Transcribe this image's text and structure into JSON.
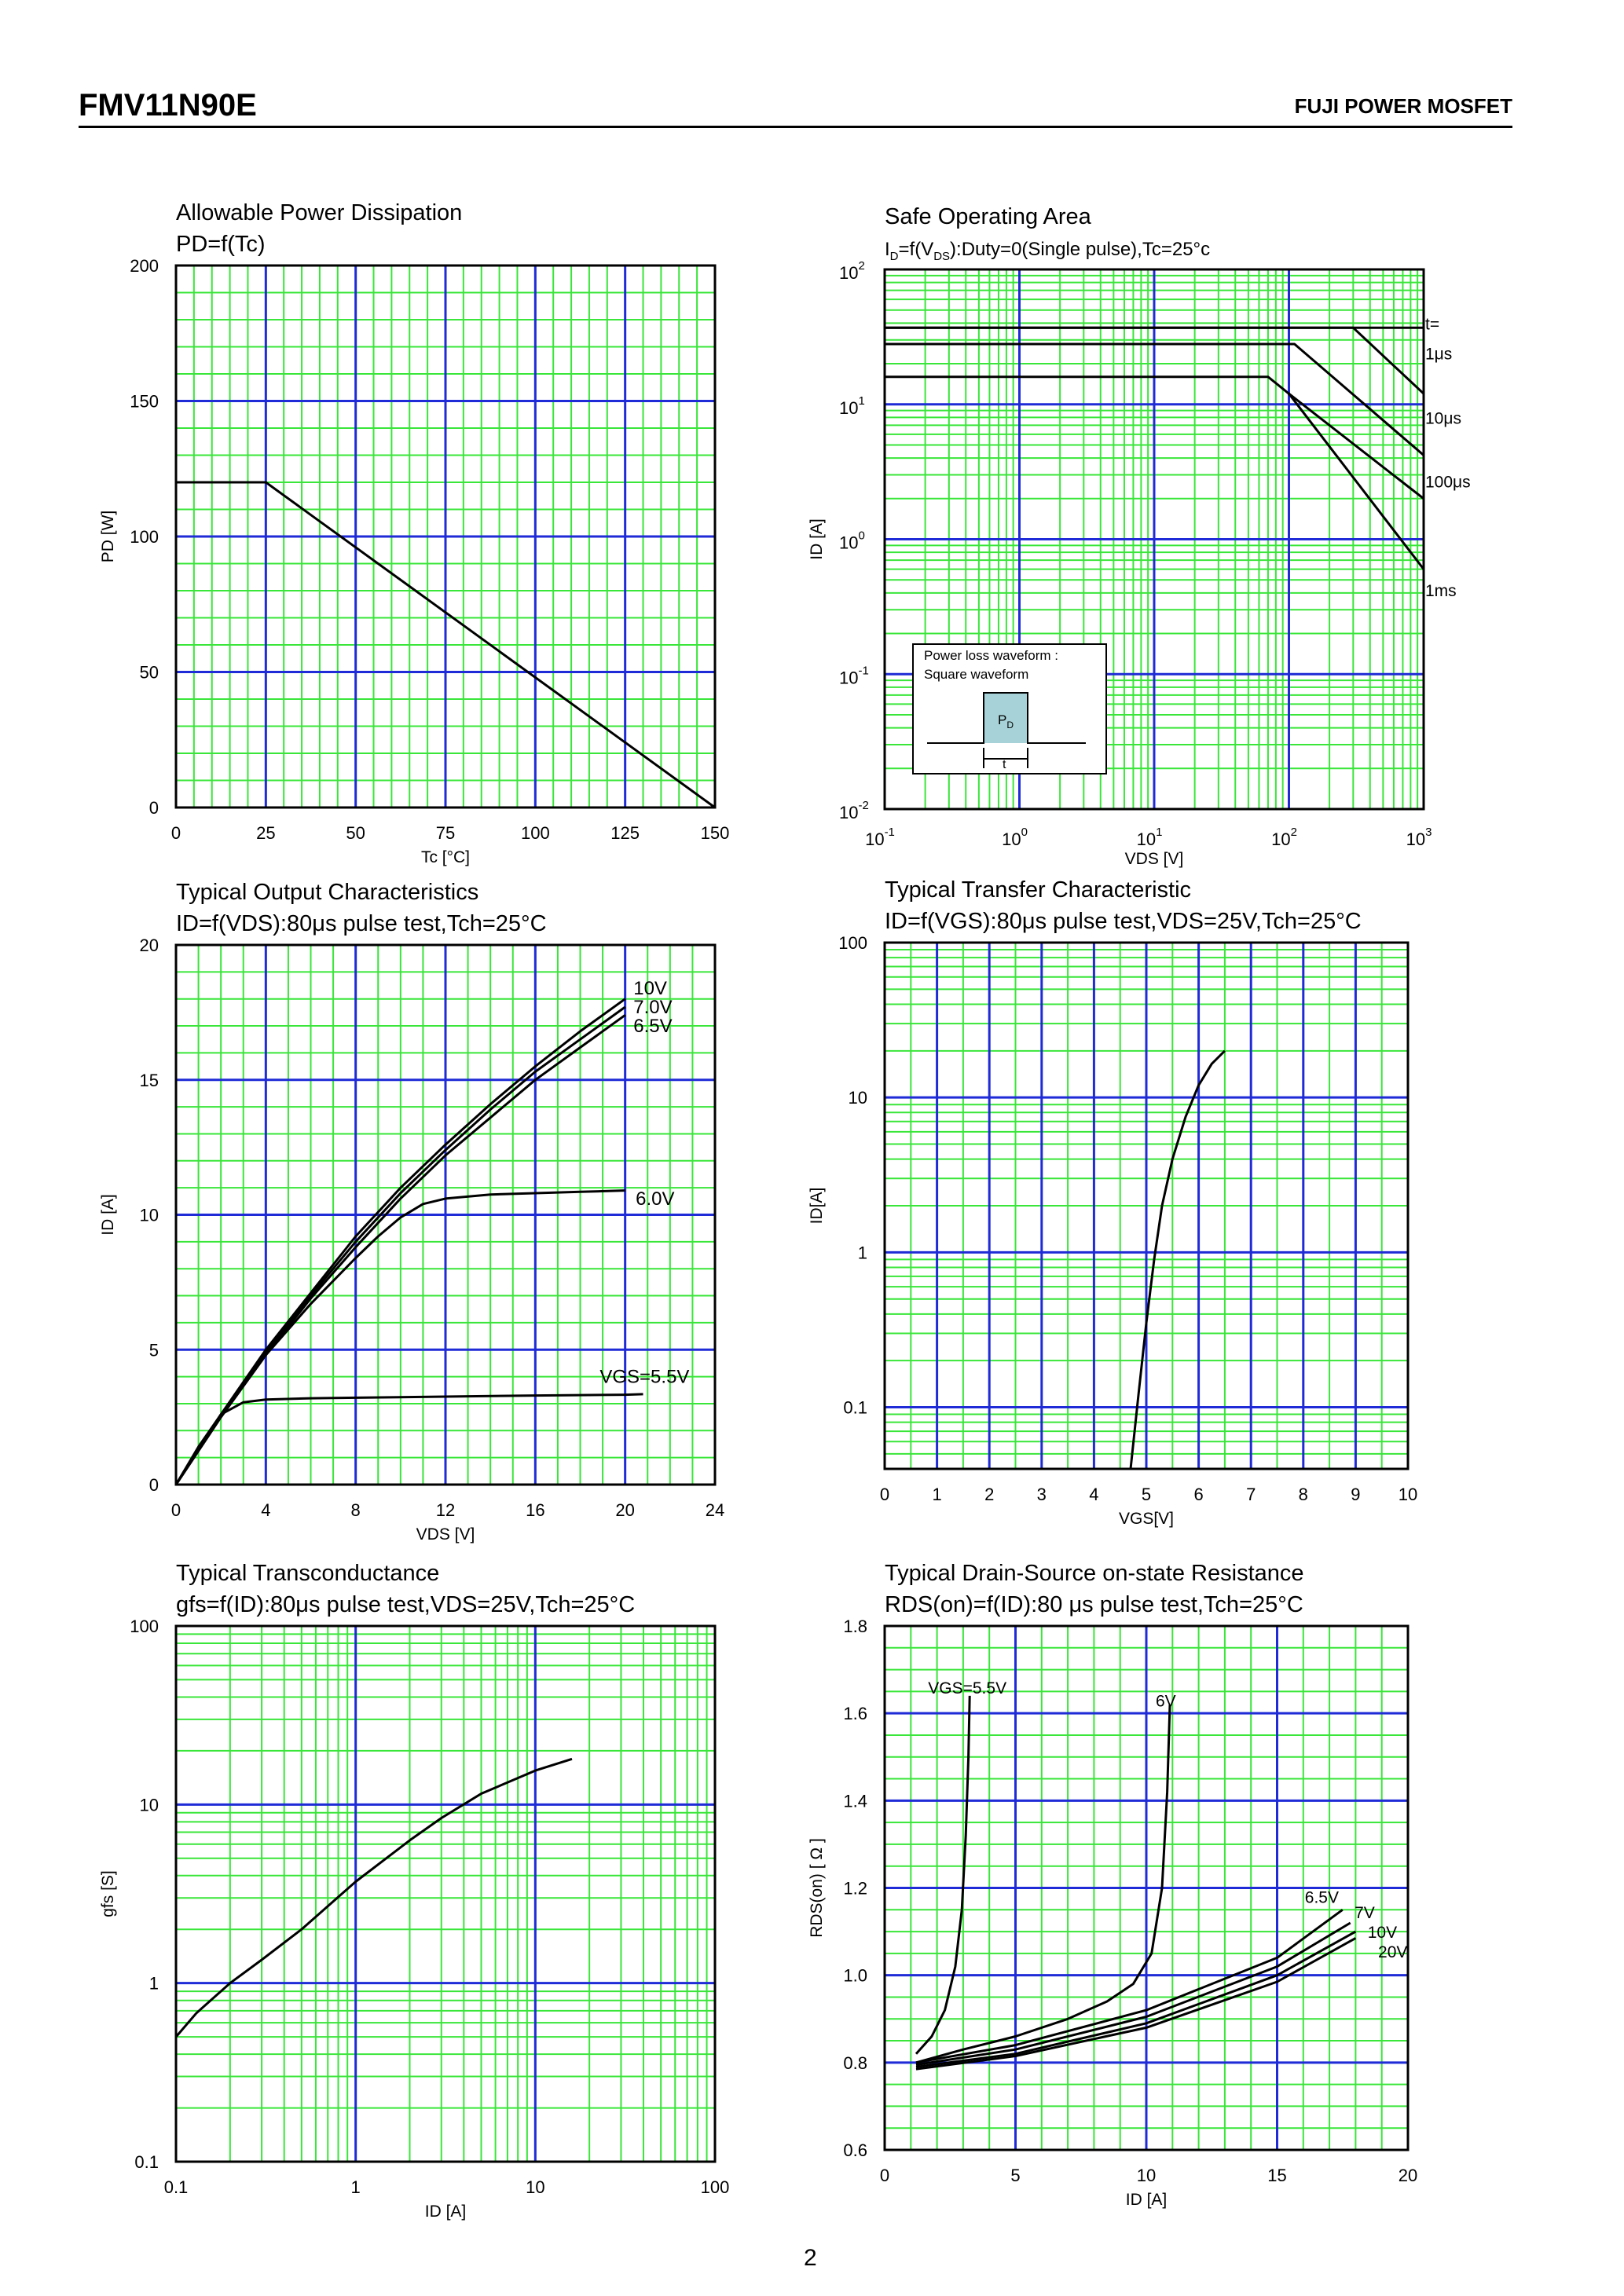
{
  "header": {
    "part_number": "FMV11N90E",
    "brand": "FUJI POWER MOSFET"
  },
  "footer": {
    "page_number": "2"
  },
  "colors": {
    "grid_minor": "#39e639",
    "grid_major": "#1f2bd6",
    "plot_bg": "#ffffff",
    "curve": "#000000"
  },
  "chart_data": [
    {
      "id": "pd",
      "type": "line",
      "title": "Allowable Power Dissipation",
      "subtitle": "PD=f(Tc)",
      "xlabel": "Tc [°C]",
      "ylabel": "PD [W]",
      "xscale": "linear",
      "yscale": "linear",
      "xlim": [
        0,
        150
      ],
      "ylim": [
        0,
        200
      ],
      "xticks": [
        0,
        25,
        50,
        75,
        100,
        125,
        150
      ],
      "yticks": [
        0,
        50,
        100,
        150,
        200
      ],
      "xtick_labels": [
        "0",
        "25",
        "50",
        "75",
        "100",
        "125",
        "150"
      ],
      "ytick_labels": [
        "0",
        "50",
        "100",
        "150",
        "200"
      ],
      "series": [
        {
          "x": [
            0,
            25,
            150
          ],
          "y": [
            120,
            120,
            0
          ]
        }
      ]
    },
    {
      "id": "soa",
      "type": "line",
      "title": "Safe Operating Area",
      "subtitle_parts": [
        "I",
        "D",
        "=f(V",
        "DS",
        "):Duty=0(Single pulse),Tc=25°c"
      ],
      "xlabel": "VDS [V]",
      "ylabel": "ID [A]",
      "xscale": "log",
      "yscale": "log",
      "xlim": [
        0.1,
        1000
      ],
      "ylim": [
        0.01,
        100
      ],
      "xticks": [
        0.1,
        1,
        10,
        100,
        1000
      ],
      "yticks": [
        0.01,
        0.1,
        1,
        10,
        100
      ],
      "xtick_base": [
        "10",
        "10",
        "10",
        "10",
        "10"
      ],
      "xtick_exp": [
        "-1",
        "0",
        "1",
        "2",
        "3"
      ],
      "ytick_base": [
        "10",
        "10",
        "10",
        "10",
        "10"
      ],
      "ytick_exp": [
        "-2",
        "-1",
        "0",
        "1",
        "2"
      ],
      "inset": {
        "line1": "Power loss waveform :",
        "line2": "Square waveform",
        "pd_base": "P",
        "pd_sub": "D",
        "t_label": "t"
      },
      "series": [
        {
          "name": "t=",
          "x": [
            0.1,
            1000
          ],
          "y": [
            37,
            37
          ]
        },
        {
          "name": "1μs",
          "x": [
            0.1,
            300,
            1000
          ],
          "y": [
            37,
            37,
            12
          ]
        },
        {
          "name": "10μs",
          "x": [
            0.1,
            110,
            1000
          ],
          "y": [
            28,
            28,
            4.2
          ]
        },
        {
          "name": "100μs",
          "x": [
            0.1,
            70,
            100,
            1000
          ],
          "y": [
            16,
            16,
            12,
            2.0
          ]
        },
        {
          "name": "1ms",
          "x": [
            100,
            1000
          ],
          "y": [
            12,
            0.6
          ]
        }
      ],
      "annotations": [
        {
          "text": "t=",
          "x": 1000,
          "y": 40
        },
        {
          "text": "1μs",
          "x": 1000,
          "y": 24
        },
        {
          "text": "10μs",
          "x": 1000,
          "y": 8
        },
        {
          "text": "100μs",
          "x": 1000,
          "y": 2.7
        },
        {
          "text": "1ms",
          "x": 1000,
          "y": 0.42
        }
      ]
    },
    {
      "id": "output",
      "type": "line",
      "title": "Typical Output Characteristics",
      "subtitle": "ID=f(VDS):80μs pulse test,Tch=25°C",
      "xlabel": "VDS [V]",
      "ylabel": "ID [A]",
      "xscale": "linear",
      "yscale": "linear",
      "xlim": [
        0,
        24
      ],
      "ylim": [
        0,
        20
      ],
      "xticks": [
        0,
        4,
        8,
        12,
        16,
        20,
        24
      ],
      "yticks": [
        0,
        5,
        10,
        15,
        20
      ],
      "xtick_labels": [
        "0",
        "4",
        "8",
        "12",
        "16",
        "20",
        "24"
      ],
      "ytick_labels": [
        "0",
        "5",
        "10",
        "15",
        "20"
      ],
      "series": [
        {
          "name": "10V",
          "x": [
            0,
            2,
            4,
            6,
            8,
            10,
            12,
            14,
            16,
            18,
            20
          ],
          "y": [
            0,
            2.6,
            5.0,
            7.1,
            9.2,
            11.0,
            12.6,
            14.1,
            15.5,
            16.8,
            18.0
          ]
        },
        {
          "name": "7.0V",
          "x": [
            0,
            2,
            4,
            6,
            8,
            10,
            12,
            14,
            16,
            18,
            20
          ],
          "y": [
            0,
            2.6,
            4.9,
            7.0,
            9.0,
            10.8,
            12.4,
            13.9,
            15.3,
            16.5,
            17.7
          ]
        },
        {
          "name": "6.5V",
          "x": [
            0,
            2,
            4,
            6,
            8,
            10,
            12,
            14,
            16,
            18,
            20
          ],
          "y": [
            0,
            2.5,
            4.8,
            6.9,
            8.8,
            10.6,
            12.2,
            13.6,
            15.0,
            16.2,
            17.4
          ]
        },
        {
          "name": "6.0V",
          "x": [
            0,
            2,
            4,
            6,
            8,
            9,
            10,
            11,
            12,
            14,
            16,
            18,
            20
          ],
          "y": [
            0,
            2.5,
            4.8,
            6.7,
            8.4,
            9.2,
            9.9,
            10.4,
            10.6,
            10.75,
            10.8,
            10.85,
            10.9
          ]
        },
        {
          "name": "VGS=5.5V",
          "x": [
            0,
            1,
            2,
            3,
            4,
            6,
            8,
            12,
            16,
            20,
            20.8
          ],
          "y": [
            0,
            1.4,
            2.6,
            3.05,
            3.15,
            3.2,
            3.22,
            3.26,
            3.3,
            3.33,
            3.35
          ]
        }
      ],
      "annotations": [
        {
          "text": "10V",
          "x": 20.3,
          "y": 18.4
        },
        {
          "text": "7.0V",
          "x": 20.3,
          "y": 17.7
        },
        {
          "text": "6.5V",
          "x": 20.3,
          "y": 17.0
        },
        {
          "text": "6.0V",
          "x": 20.4,
          "y": 10.6
        },
        {
          "text": "VGS=5.5V",
          "x": 18.8,
          "y": 4.0
        }
      ]
    },
    {
      "id": "transfer",
      "type": "line",
      "title": "Typical Transfer Characteristic",
      "subtitle": "ID=f(VGS):80μs pulse test,VDS=25V,Tch=25°C",
      "xlabel": "VGS[V]",
      "ylabel": "ID[A]",
      "xscale": "linear",
      "yscale": "log",
      "xlim": [
        0,
        10
      ],
      "ylim": [
        0.04,
        100
      ],
      "xticks": [
        0,
        1,
        2,
        3,
        4,
        5,
        6,
        7,
        8,
        9,
        10
      ],
      "yticks": [
        0.1,
        1,
        10,
        100
      ],
      "xtick_labels": [
        "0",
        "1",
        "2",
        "3",
        "4",
        "5",
        "6",
        "7",
        "8",
        "9",
        "10"
      ],
      "ytick_labels": [
        "0.1",
        "1",
        "10",
        "100"
      ],
      "series": [
        {
          "x": [
            4.7,
            4.85,
            5.0,
            5.15,
            5.3,
            5.5,
            5.75,
            6.0,
            6.25,
            6.5
          ],
          "y": [
            0.04,
            0.12,
            0.35,
            0.9,
            2.0,
            4.0,
            7.5,
            12.0,
            16.5,
            20.0
          ]
        }
      ]
    },
    {
      "id": "gfs",
      "type": "line",
      "title": "Typical Transconductance",
      "subtitle": "gfs=f(ID):80μs pulse test,VDS=25V,Tch=25°C",
      "xlabel": "ID [A]",
      "ylabel": "gfs [S]",
      "xscale": "log",
      "yscale": "log",
      "xlim": [
        0.1,
        100
      ],
      "ylim": [
        0.1,
        100
      ],
      "xticks": [
        0.1,
        1,
        10,
        100
      ],
      "yticks": [
        0.1,
        1,
        10,
        100
      ],
      "xtick_labels": [
        "0.1",
        "1",
        "10",
        "100"
      ],
      "ytick_labels": [
        "0.1",
        "1",
        "10",
        "100"
      ],
      "series": [
        {
          "x": [
            0.1,
            0.13,
            0.2,
            0.3,
            0.5,
            1,
            2,
            3,
            5,
            10,
            16
          ],
          "y": [
            0.5,
            0.68,
            1.0,
            1.35,
            2.0,
            3.7,
            6.3,
            8.4,
            11.5,
            15.5,
            18.0
          ]
        }
      ]
    },
    {
      "id": "rds",
      "type": "line",
      "title": "Typical Drain-Source on-state Resistance",
      "subtitle": "RDS(on)=f(ID):80 μs pulse test,Tch=25°C",
      "xlabel": "ID [A]",
      "ylabel": "RDS(on) [ Ω ]",
      "xscale": "linear",
      "yscale": "linear",
      "xlim": [
        0,
        20
      ],
      "ylim": [
        0.6,
        1.8
      ],
      "xticks": [
        0,
        5,
        10,
        15,
        20
      ],
      "yticks": [
        0.6,
        0.8,
        1.0,
        1.2,
        1.4,
        1.6,
        1.8
      ],
      "xtick_labels": [
        "0",
        "5",
        "10",
        "15",
        "20"
      ],
      "ytick_labels": [
        "0.6",
        "0.8",
        "1.0",
        "1.2",
        "1.4",
        "1.6",
        "1.8"
      ],
      "series": [
        {
          "name": "VGS=5.5V",
          "x": [
            1.2,
            1.8,
            2.3,
            2.7,
            2.95,
            3.1,
            3.2,
            3.25
          ],
          "y": [
            0.82,
            0.86,
            0.92,
            1.02,
            1.15,
            1.32,
            1.5,
            1.64
          ]
        },
        {
          "name": "6V",
          "x": [
            1.2,
            3,
            5,
            7,
            8.5,
            9.5,
            10.2,
            10.6,
            10.8,
            10.9
          ],
          "y": [
            0.8,
            0.83,
            0.86,
            0.9,
            0.94,
            0.98,
            1.05,
            1.2,
            1.42,
            1.62
          ]
        },
        {
          "name": "6.5V",
          "x": [
            1.2,
            5,
            10,
            15,
            17.5
          ],
          "y": [
            0.8,
            0.84,
            0.92,
            1.04,
            1.15
          ]
        },
        {
          "name": "7V",
          "x": [
            1.2,
            5,
            10,
            15,
            17.8
          ],
          "y": [
            0.795,
            0.83,
            0.905,
            1.02,
            1.12
          ]
        },
        {
          "name": "10V",
          "x": [
            1.2,
            5,
            10,
            15,
            18.0
          ],
          "y": [
            0.79,
            0.82,
            0.89,
            1.0,
            1.1
          ]
        },
        {
          "name": "20V",
          "x": [
            1.2,
            5,
            10,
            15,
            18.0
          ],
          "y": [
            0.785,
            0.815,
            0.88,
            0.985,
            1.085
          ]
        }
      ],
      "annotations": [
        {
          "text": "VGS=5.5V",
          "x": 1.6,
          "y": 1.66
        },
        {
          "text": "6V",
          "x": 10.3,
          "y": 1.63
        },
        {
          "text": "6.5V",
          "x": 16.0,
          "y": 1.18
        },
        {
          "text": "7V",
          "x": 17.9,
          "y": 1.145
        },
        {
          "text": "10V",
          "x": 18.4,
          "y": 1.1
        },
        {
          "text": "20V",
          "x": 18.8,
          "y": 1.055
        }
      ]
    }
  ]
}
